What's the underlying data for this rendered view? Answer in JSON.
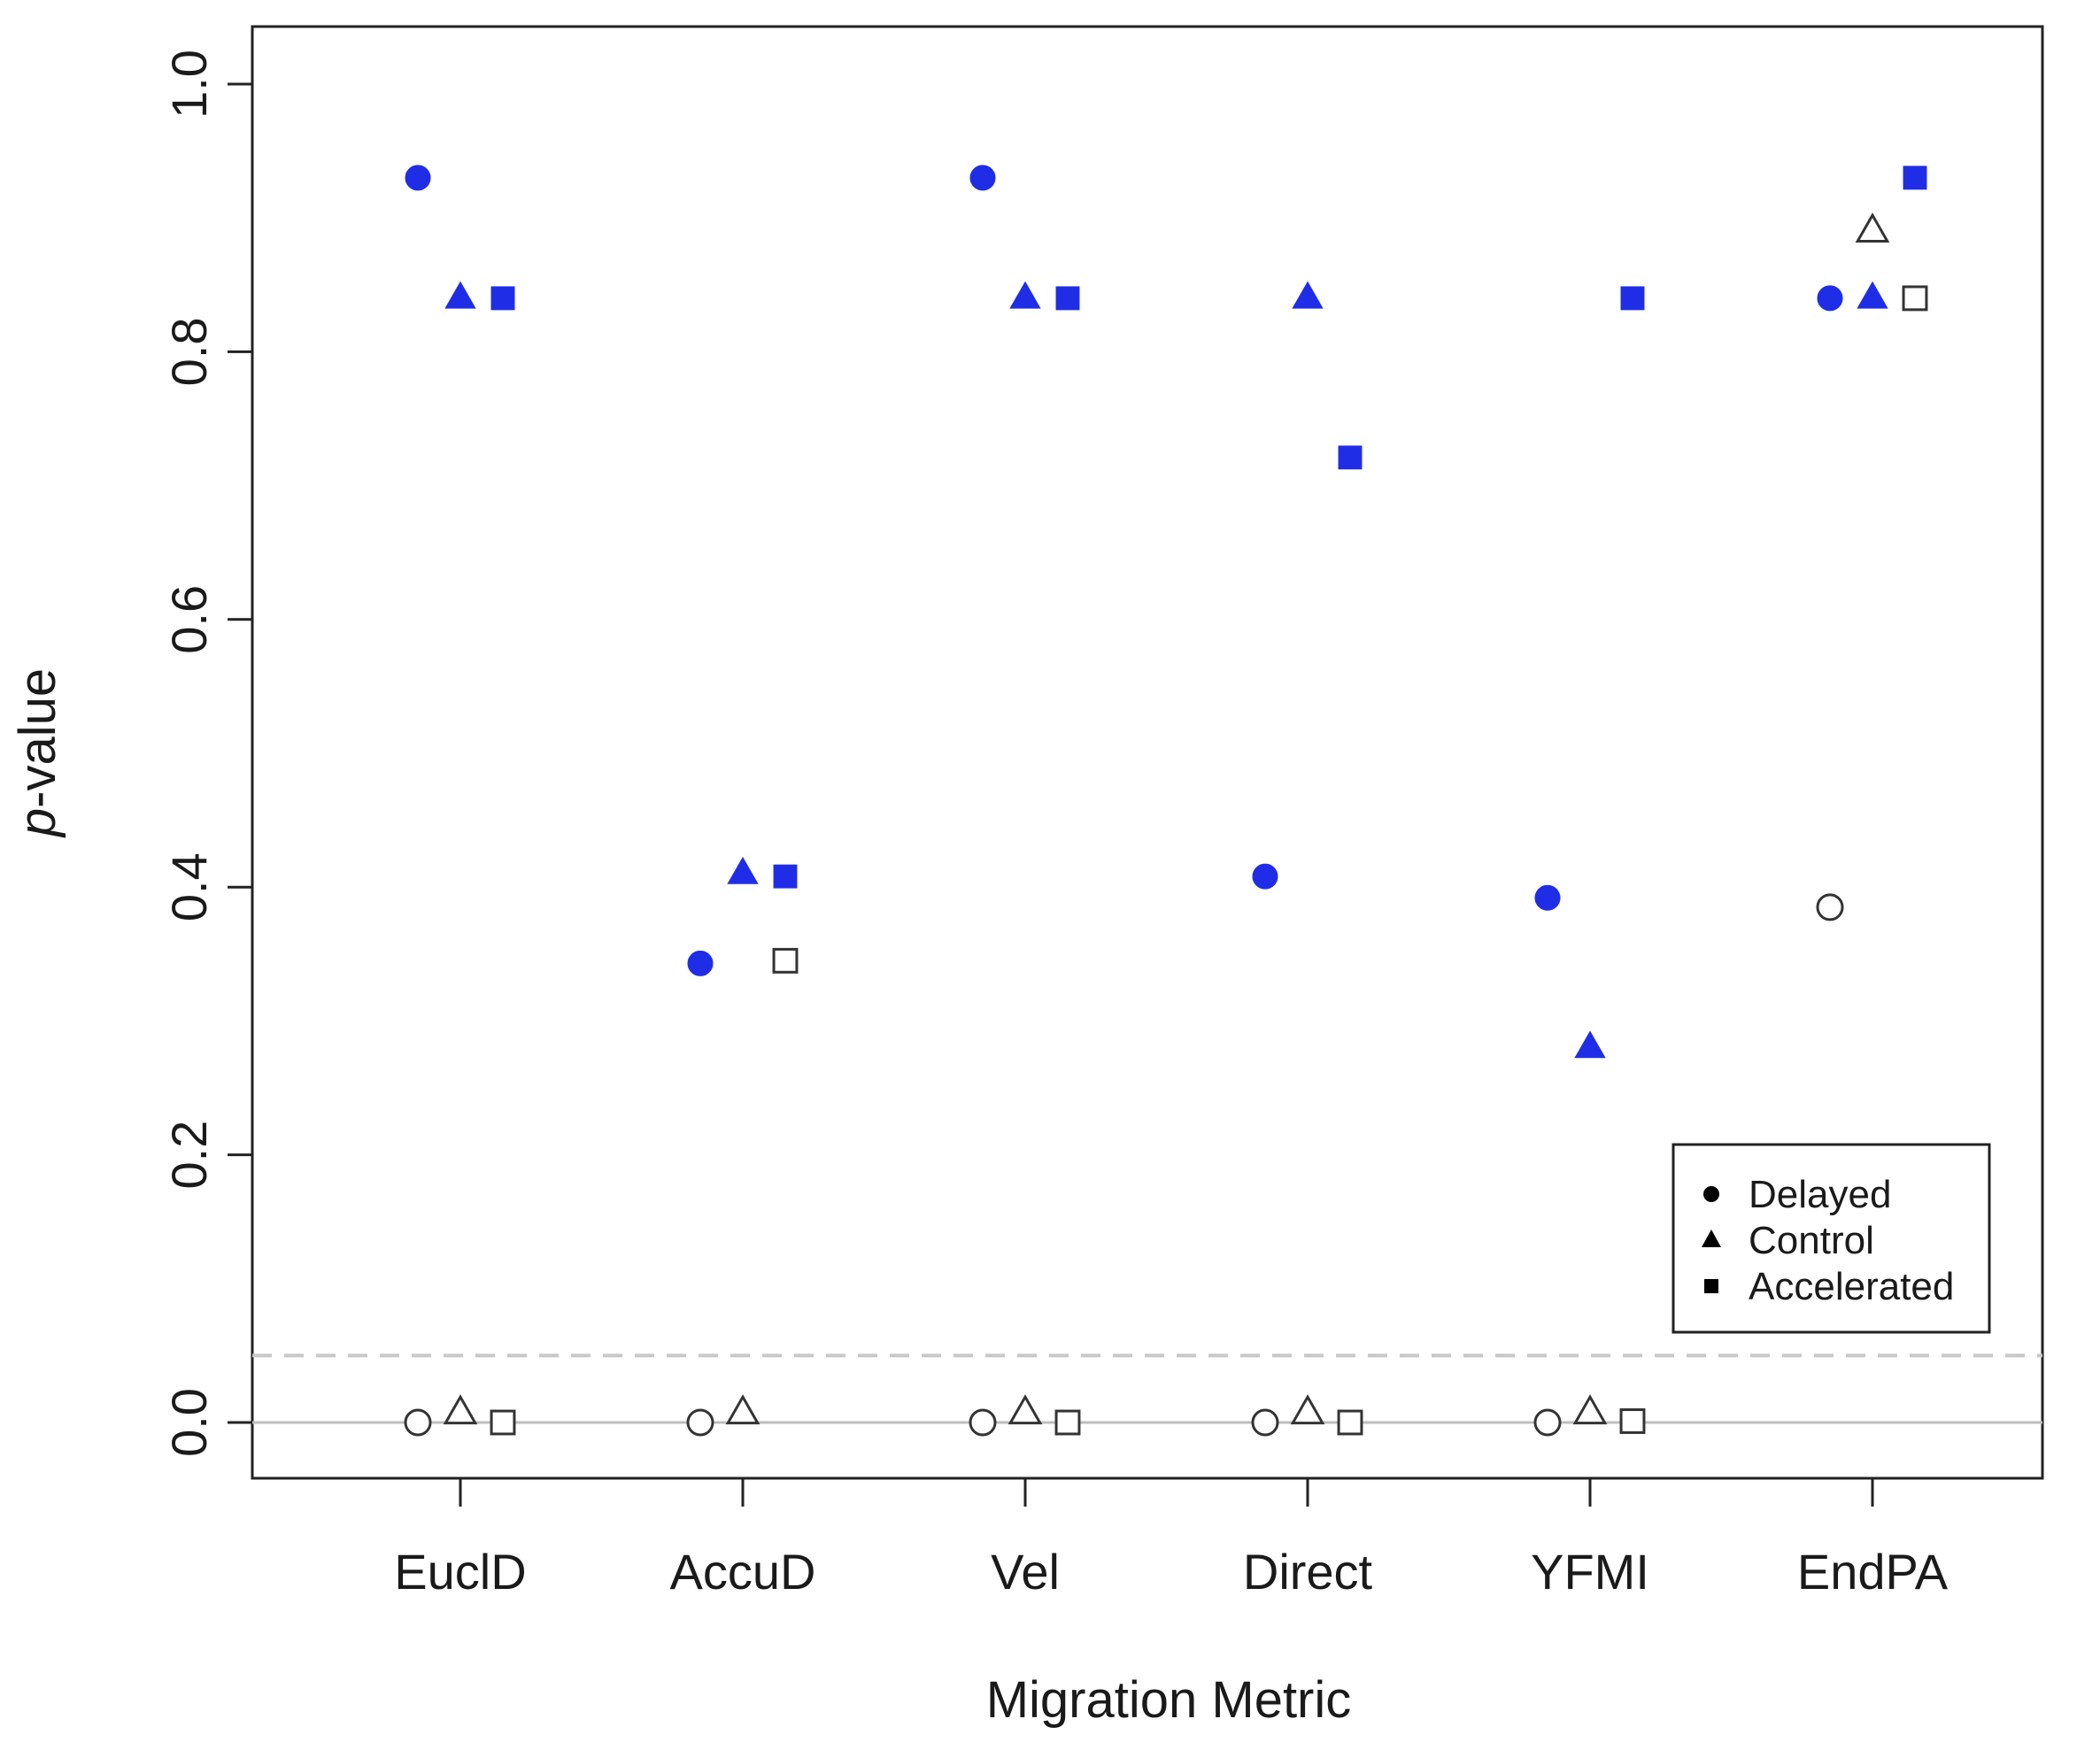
{
  "chart_data": {
    "type": "scatter",
    "title": "",
    "xlabel": "Migration Metric",
    "ylabel_prefix": "p",
    "ylabel_suffix": "-value",
    "categories": [
      "EuclD",
      "AccuD",
      "Vel",
      "Direct",
      "YFMI",
      "EndPA"
    ],
    "yticks": [
      "0.0",
      "0.2",
      "0.4",
      "0.6",
      "0.8",
      "1.0"
    ],
    "yvalues": [
      0.0,
      0.2,
      0.4,
      0.6,
      0.8,
      1.0
    ],
    "ylim": [
      -0.08,
      1.08
    ],
    "reference_lines": [
      {
        "y": 0.0,
        "style": "solid"
      },
      {
        "y": 0.05,
        "style": "dashed"
      }
    ],
    "colors": {
      "significant": "#1f2ee6",
      "open": "#333333"
    },
    "series": [
      {
        "name": "Delayed",
        "marker": "circle",
        "filled": [
          0.93,
          0.343,
          0.93,
          0.408,
          0.392,
          0.84
        ],
        "open": [
          0.0,
          0.0,
          0.0,
          0.0,
          0.0,
          0.385
        ]
      },
      {
        "name": "Control",
        "marker": "triangle",
        "filled": [
          0.84,
          0.41,
          0.84,
          0.84,
          0.28,
          0.84
        ],
        "open": [
          0.007,
          0.007,
          0.007,
          0.007,
          0.007,
          0.89
        ]
      },
      {
        "name": "Accelerated",
        "marker": "square",
        "filled": [
          0.84,
          0.408,
          0.84,
          0.721,
          0.84,
          0.93
        ],
        "open": [
          0.0,
          0.345,
          0.0,
          0.0,
          0.001,
          0.84
        ]
      }
    ],
    "legend": {
      "position": "bottom-right",
      "entries": [
        "Delayed",
        "Control",
        "Accelerated"
      ]
    }
  }
}
